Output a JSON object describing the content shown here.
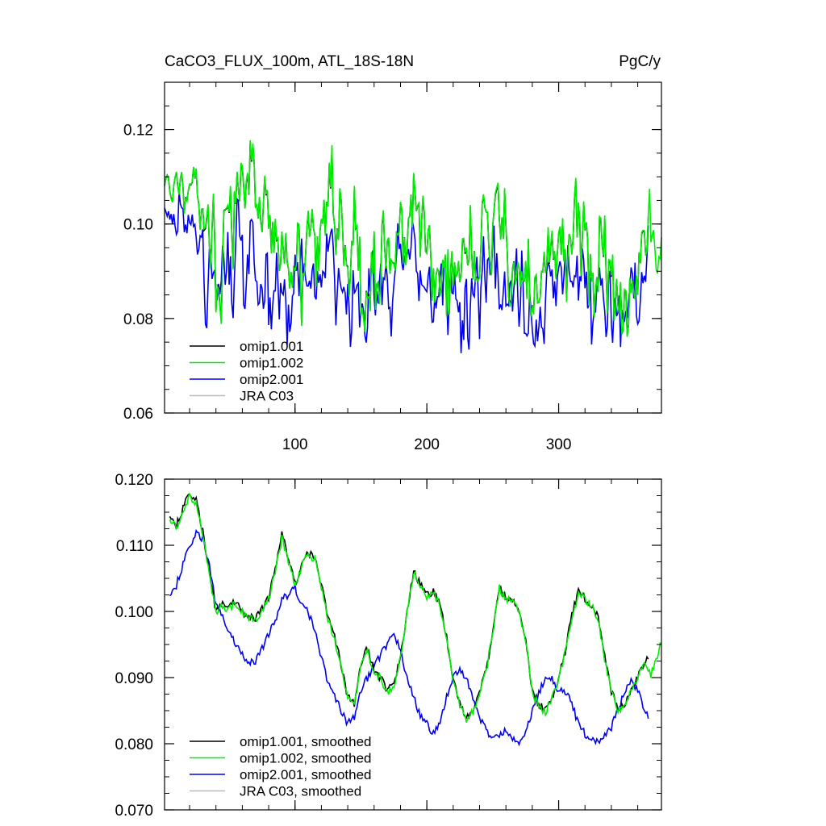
{
  "header": {
    "title": "CaCO3_FLUX_100m, ATL_18S-18N",
    "units": "PgC/y"
  },
  "colors": {
    "omip1_001": "#000000",
    "omip1_002": "#00ee00",
    "omip2_001": "#0000ee",
    "jra": "#bbbbbb"
  },
  "chart_data": [
    {
      "type": "line",
      "panel": "top",
      "title": "CaCO3_FLUX_100m, ATL_18S-18N",
      "units": "PgC/y",
      "xlim": [
        1,
        378
      ],
      "ylim": [
        0.06,
        0.13
      ],
      "xticks": [
        100,
        200,
        300
      ],
      "xtick_labels": [
        "100",
        "200",
        "300"
      ],
      "yticks": [
        0.06,
        0.08,
        0.1,
        0.12
      ],
      "ytick_labels": [
        "0.06",
        "0.08",
        "0.10",
        "0.12"
      ],
      "legend_position": "bottom-left",
      "series": [
        {
          "key": "omip1_001",
          "name": "omip1.001",
          "n": 368,
          "base": 0.1,
          "trend": -0.0055,
          "amp": 0.011,
          "noise": 0.0115,
          "start": 0.113,
          "seed": 11
        },
        {
          "key": "omip1_002",
          "name": "omip1.002",
          "n": 378,
          "base": 0.1,
          "trend": -0.0055,
          "amp": 0.011,
          "noise": 0.012,
          "start": 0.113,
          "seed": 11
        },
        {
          "key": "omip2_001",
          "name": "omip2.001",
          "n": 368,
          "base": 0.091,
          "trend": -0.004,
          "amp": 0.006,
          "noise": 0.0105,
          "start": 0.106,
          "seed": 29
        },
        {
          "key": "jra",
          "name": "JRA C03",
          "n": 0
        }
      ]
    },
    {
      "type": "line",
      "panel": "bottom",
      "xlim": [
        1,
        378
      ],
      "ylim": [
        0.07,
        0.12
      ],
      "xticks": [
        100,
        200,
        300
      ],
      "xtick_labels": [
        "",
        "",
        ""
      ],
      "yticks": [
        0.07,
        0.08,
        0.09,
        0.1,
        0.11,
        0.12
      ],
      "ytick_labels": [
        "0.070",
        "0.080",
        "0.090",
        "0.100",
        "0.110",
        "0.120"
      ],
      "legend_position": "bottom-left",
      "series": [
        {
          "key": "omip1_001",
          "name": "omip1.001, smoothed",
          "n": 368,
          "anchors": [
            [
              5,
              0.1145
            ],
            [
              10,
              0.113
            ],
            [
              15,
              0.1155
            ],
            [
              20,
              0.118
            ],
            [
              25,
              0.117
            ],
            [
              30,
              0.112
            ],
            [
              35,
              0.106
            ],
            [
              40,
              0.1
            ],
            [
              45,
              0.101
            ],
            [
              50,
              0.1005
            ],
            [
              55,
              0.1015
            ],
            [
              60,
              0.1
            ],
            [
              65,
              0.099
            ],
            [
              70,
              0.099
            ],
            [
              75,
              0.1005
            ],
            [
              80,
              0.102
            ],
            [
              85,
              0.1065
            ],
            [
              90,
              0.112
            ],
            [
              95,
              0.108
            ],
            [
              100,
              0.104
            ],
            [
              105,
              0.107
            ],
            [
              110,
              0.109
            ],
            [
              115,
              0.108
            ],
            [
              120,
              0.104
            ],
            [
              125,
              0.099
            ],
            [
              130,
              0.096
            ],
            [
              135,
              0.092
            ],
            [
              140,
              0.087
            ],
            [
              145,
              0.086
            ],
            [
              150,
              0.092
            ],
            [
              155,
              0.0945
            ],
            [
              160,
              0.091
            ],
            [
              165,
              0.09
            ],
            [
              170,
              0.088
            ],
            [
              175,
              0.089
            ],
            [
              180,
              0.093
            ],
            [
              185,
              0.1
            ],
            [
              190,
              0.106
            ],
            [
              195,
              0.104
            ],
            [
              200,
              0.1025
            ],
            [
              205,
              0.103
            ],
            [
              210,
              0.101
            ],
            [
              215,
              0.096
            ],
            [
              220,
              0.0895
            ],
            [
              225,
              0.086
            ],
            [
              230,
              0.084
            ],
            [
              235,
              0.085
            ],
            [
              240,
              0.088
            ],
            [
              245,
              0.091
            ],
            [
              250,
              0.097
            ],
            [
              255,
              0.104
            ],
            [
              260,
              0.102
            ],
            [
              265,
              0.102
            ],
            [
              270,
              0.1
            ],
            [
              275,
              0.096
            ],
            [
              280,
              0.088
            ],
            [
              285,
              0.086
            ],
            [
              290,
              0.085
            ],
            [
              295,
              0.087
            ],
            [
              300,
              0.09
            ],
            [
              305,
              0.094
            ],
            [
              310,
              0.0995
            ],
            [
              315,
              0.103
            ],
            [
              320,
              0.102
            ],
            [
              325,
              0.101
            ],
            [
              330,
              0.099
            ],
            [
              335,
              0.093
            ],
            [
              340,
              0.088
            ],
            [
              345,
              0.085
            ],
            [
              350,
              0.086
            ],
            [
              355,
              0.088
            ],
            [
              360,
              0.09
            ],
            [
              365,
              0.092
            ],
            [
              368,
              0.093
            ]
          ]
        },
        {
          "key": "omip1_002",
          "name": "omip1.002, smoothed",
          "n": 378,
          "anchors": [
            [
              5,
              0.114
            ],
            [
              10,
              0.1125
            ],
            [
              15,
              0.115
            ],
            [
              20,
              0.1172
            ],
            [
              25,
              0.1165
            ],
            [
              30,
              0.1115
            ],
            [
              35,
              0.1055
            ],
            [
              40,
              0.0995
            ],
            [
              45,
              0.1008
            ],
            [
              50,
              0.1003
            ],
            [
              55,
              0.1012
            ],
            [
              60,
              0.0998
            ],
            [
              65,
              0.0988
            ],
            [
              70,
              0.0988
            ],
            [
              75,
              0.1002
            ],
            [
              80,
              0.1018
            ],
            [
              85,
              0.106
            ],
            [
              90,
              0.111
            ],
            [
              95,
              0.1075
            ],
            [
              100,
              0.104
            ],
            [
              105,
              0.1068
            ],
            [
              110,
              0.1088
            ],
            [
              115,
              0.1078
            ],
            [
              120,
              0.1038
            ],
            [
              125,
              0.0988
            ],
            [
              130,
              0.0958
            ],
            [
              135,
              0.0918
            ],
            [
              140,
              0.0868
            ],
            [
              145,
              0.0858
            ],
            [
              150,
              0.0918
            ],
            [
              155,
              0.094
            ],
            [
              160,
              0.0908
            ],
            [
              165,
              0.0898
            ],
            [
              170,
              0.0878
            ],
            [
              175,
              0.0888
            ],
            [
              180,
              0.0928
            ],
            [
              185,
              0.0998
            ],
            [
              190,
              0.1058
            ],
            [
              195,
              0.1038
            ],
            [
              200,
              0.1022
            ],
            [
              205,
              0.1028
            ],
            [
              210,
              0.1008
            ],
            [
              215,
              0.0958
            ],
            [
              220,
              0.0892
            ],
            [
              225,
              0.0858
            ],
            [
              230,
              0.0838
            ],
            [
              235,
              0.0848
            ],
            [
              240,
              0.0878
            ],
            [
              245,
              0.0908
            ],
            [
              250,
              0.0968
            ],
            [
              255,
              0.1036
            ],
            [
              260,
              0.1018
            ],
            [
              265,
              0.1018
            ],
            [
              270,
              0.0998
            ],
            [
              275,
              0.0958
            ],
            [
              280,
              0.0878
            ],
            [
              285,
              0.0858
            ],
            [
              290,
              0.0848
            ],
            [
              295,
              0.0868
            ],
            [
              300,
              0.0898
            ],
            [
              305,
              0.0938
            ],
            [
              310,
              0.099
            ],
            [
              315,
              0.1028
            ],
            [
              320,
              0.1018
            ],
            [
              325,
              0.1008
            ],
            [
              330,
              0.0988
            ],
            [
              335,
              0.0928
            ],
            [
              340,
              0.0878
            ],
            [
              345,
              0.0848
            ],
            [
              350,
              0.0858
            ],
            [
              355,
              0.088
            ],
            [
              360,
              0.09
            ],
            [
              365,
              0.0918
            ],
            [
              370,
              0.0905
            ],
            [
              375,
              0.0935
            ],
            [
              378,
              0.0955
            ]
          ]
        },
        {
          "key": "omip2_001",
          "name": "omip2.001, smoothed",
          "n": 368,
          "anchors": [
            [
              5,
              0.1025
            ],
            [
              10,
              0.104
            ],
            [
              15,
              0.107
            ],
            [
              20,
              0.11
            ],
            [
              25,
              0.112
            ],
            [
              30,
              0.111
            ],
            [
              35,
              0.107
            ],
            [
              40,
              0.101
            ],
            [
              45,
              0.099
            ],
            [
              50,
              0.0965
            ],
            [
              55,
              0.095
            ],
            [
              60,
              0.0935
            ],
            [
              65,
              0.092
            ],
            [
              70,
              0.0925
            ],
            [
              75,
              0.0945
            ],
            [
              80,
              0.0965
            ],
            [
              85,
              0.0985
            ],
            [
              90,
              0.102
            ],
            [
              95,
              0.1025
            ],
            [
              100,
              0.1035
            ],
            [
              105,
              0.101
            ],
            [
              110,
              0.1
            ],
            [
              115,
              0.097
            ],
            [
              120,
              0.093
            ],
            [
              125,
              0.089
            ],
            [
              130,
              0.087
            ],
            [
              135,
              0.085
            ],
            [
              140,
              0.083
            ],
            [
              145,
              0.084
            ],
            [
              150,
              0.088
            ],
            [
              155,
              0.09
            ],
            [
              160,
              0.092
            ],
            [
              165,
              0.0935
            ],
            [
              170,
              0.095
            ],
            [
              175,
              0.0965
            ],
            [
              180,
              0.094
            ],
            [
              185,
              0.09
            ],
            [
              190,
              0.087
            ],
            [
              195,
              0.084
            ],
            [
              200,
              0.083
            ],
            [
              205,
              0.0815
            ],
            [
              210,
              0.083
            ],
            [
              215,
              0.087
            ],
            [
              220,
              0.09
            ],
            [
              225,
              0.091
            ],
            [
              230,
              0.09
            ],
            [
              235,
              0.087
            ],
            [
              240,
              0.084
            ],
            [
              245,
              0.082
            ],
            [
              250,
              0.081
            ],
            [
              255,
              0.0815
            ],
            [
              260,
              0.082
            ],
            [
              265,
              0.081
            ],
            [
              270,
              0.08
            ],
            [
              275,
              0.082
            ],
            [
              280,
              0.085
            ],
            [
              285,
              0.088
            ],
            [
              290,
              0.0895
            ],
            [
              295,
              0.09
            ],
            [
              300,
              0.088
            ],
            [
              305,
              0.088
            ],
            [
              310,
              0.086
            ],
            [
              315,
              0.083
            ],
            [
              320,
              0.0815
            ],
            [
              325,
              0.081
            ],
            [
              330,
              0.08
            ],
            [
              335,
              0.081
            ],
            [
              340,
              0.0825
            ],
            [
              345,
              0.085
            ],
            [
              350,
              0.088
            ],
            [
              355,
              0.0895
            ],
            [
              360,
              0.088
            ],
            [
              365,
              0.085
            ],
            [
              368,
              0.084
            ]
          ]
        },
        {
          "key": "jra",
          "name": "JRA C03, smoothed",
          "n": 0
        }
      ]
    }
  ]
}
